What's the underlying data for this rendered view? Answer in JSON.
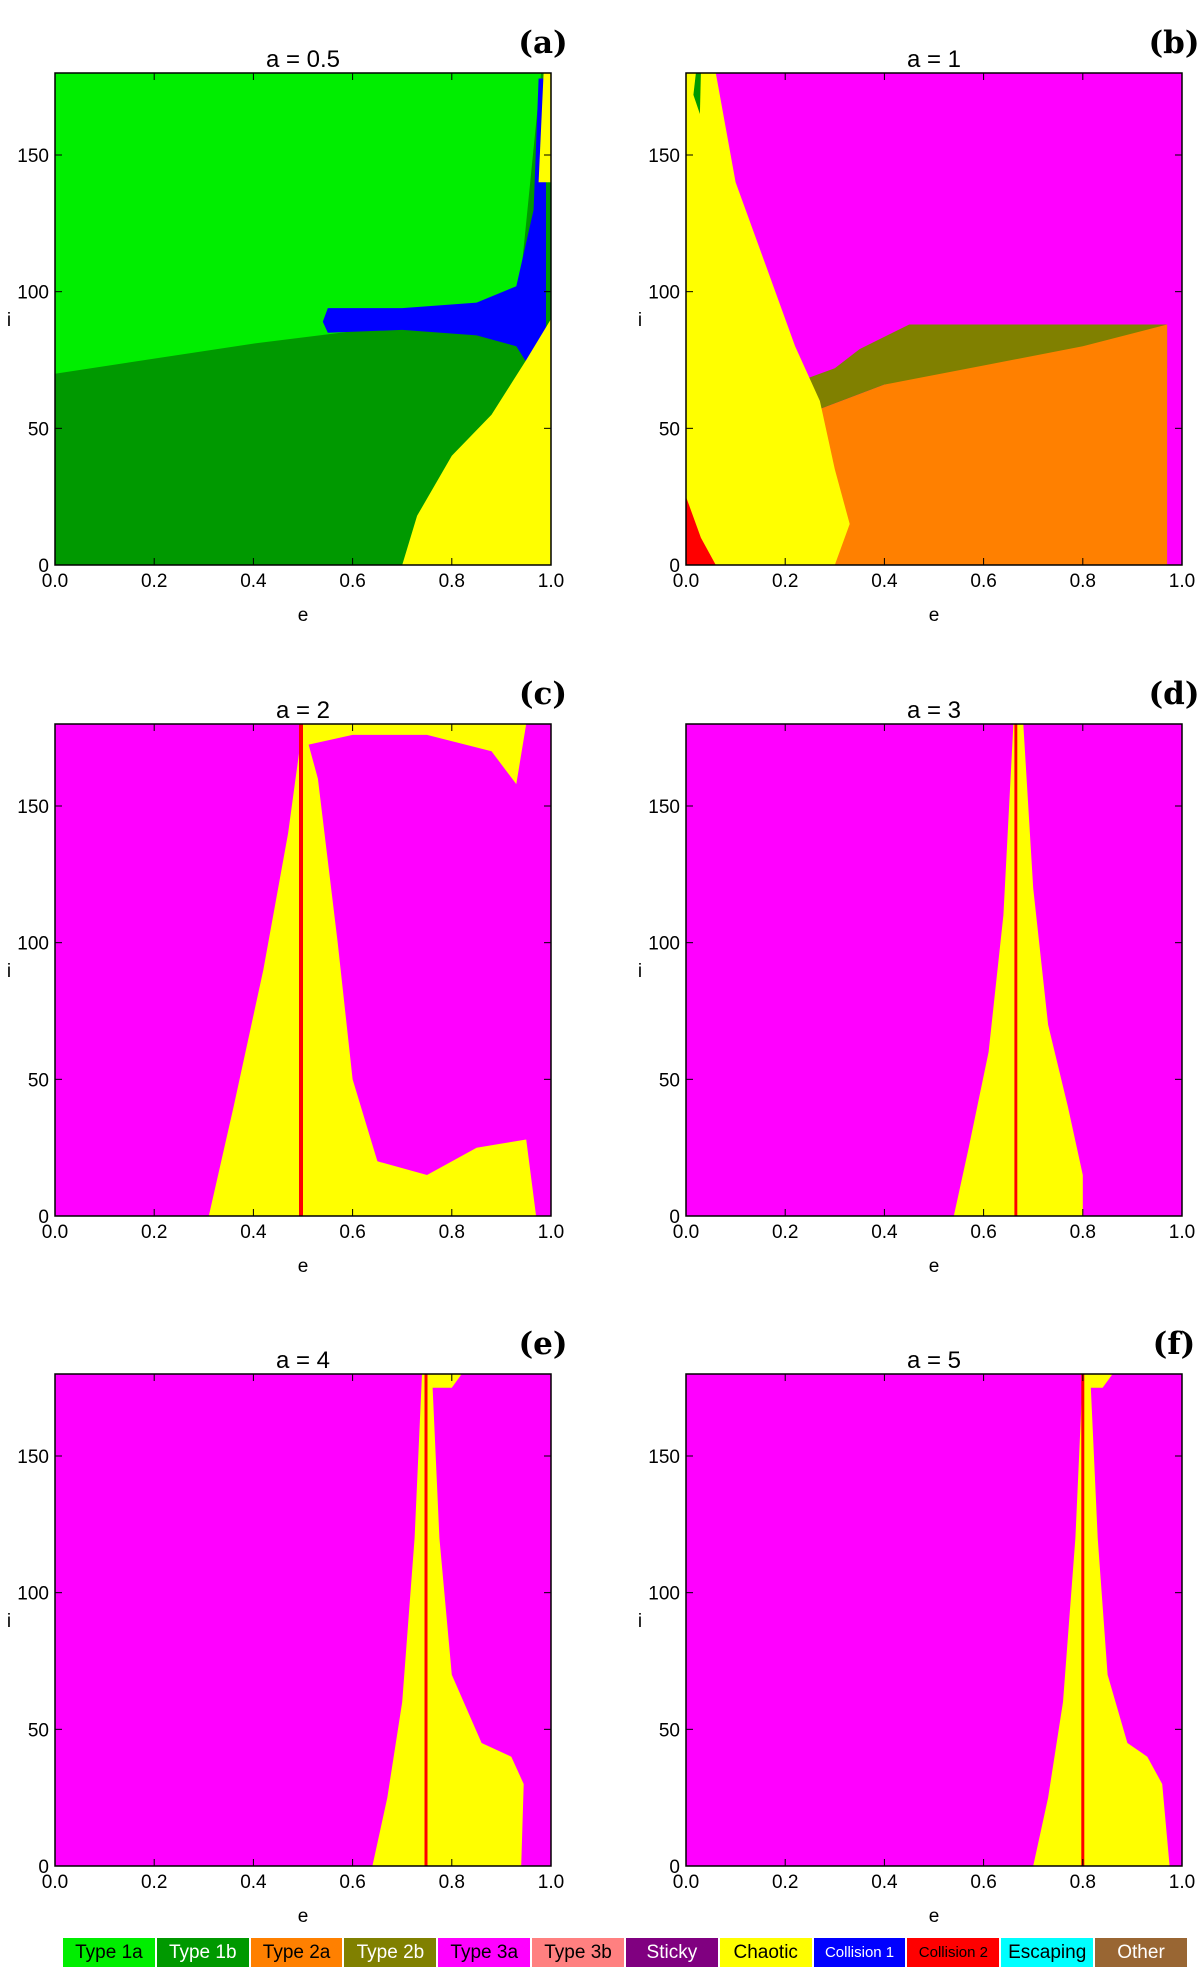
{
  "chart_data": [
    {
      "type": "heatmap",
      "panel": "(a)",
      "title": "a = 0.5",
      "xlabel": "e",
      "ylabel": "i",
      "xlim": [
        0.0,
        1.0
      ],
      "ylim": [
        0,
        180
      ],
      "xticks": [
        "0.0",
        "0.2",
        "0.4",
        "0.6",
        "0.8",
        "1.0"
      ],
      "yticks": [
        "0",
        "50",
        "100",
        "150"
      ],
      "background": "Type 1b",
      "regions": [
        {
          "class": "Type 1a",
          "polygon": [
            [
              0,
              70
            ],
            [
              0.2,
              75.5
            ],
            [
              0.4,
              81
            ],
            [
              0.6,
              85.5
            ],
            [
              0.8,
              88
            ],
            [
              0.93,
              89
            ],
            [
              0.98,
              180
            ],
            [
              0,
              180
            ]
          ]
        },
        {
          "class": "Collision 1",
          "polygon": [
            [
              0.54,
              89
            ],
            [
              0.55,
              94
            ],
            [
              0.7,
              94
            ],
            [
              0.85,
              96
            ],
            [
              0.93,
              102
            ],
            [
              0.965,
              130
            ],
            [
              0.975,
              178
            ],
            [
              0.99,
              178
            ],
            [
              0.99,
              60
            ],
            [
              0.965,
              70
            ],
            [
              0.93,
              80
            ],
            [
              0.85,
              84
            ],
            [
              0.7,
              86
            ],
            [
              0.55,
              85
            ]
          ]
        },
        {
          "class": "Chaotic",
          "polygon": [
            [
              0.7,
              0
            ],
            [
              0.73,
              18
            ],
            [
              0.8,
              40
            ],
            [
              0.88,
              55
            ],
            [
              0.95,
              75
            ],
            [
              1.0,
              90
            ],
            [
              1.0,
              0
            ]
          ]
        },
        {
          "class": "Chaotic",
          "polygon": [
            [
              0.975,
              140
            ],
            [
              0.985,
              180
            ],
            [
              1.0,
              180
            ],
            [
              1.0,
              140
            ]
          ]
        }
      ]
    },
    {
      "type": "heatmap",
      "panel": "(b)",
      "title": "a = 1",
      "xlabel": "e",
      "ylabel": "i",
      "xlim": [
        0.0,
        1.0
      ],
      "ylim": [
        0,
        180
      ],
      "xticks": [
        "0.0",
        "0.2",
        "0.4",
        "0.6",
        "0.8",
        "1.0"
      ],
      "yticks": [
        "0",
        "50",
        "100",
        "150"
      ],
      "background": "Type 3a",
      "regions": [
        {
          "class": "Type 2b",
          "polygon": [
            [
              0.24,
              55
            ],
            [
              0.24,
              68
            ],
            [
              0.3,
              72
            ],
            [
              0.35,
              79
            ],
            [
              0.45,
              88
            ],
            [
              0.97,
              88
            ],
            [
              0.97,
              72
            ],
            [
              0.6,
              68
            ],
            [
              0.4,
              66
            ]
          ]
        },
        {
          "class": "Type 2a",
          "polygon": [
            [
              0.24,
              55
            ],
            [
              0.4,
              66
            ],
            [
              0.6,
              73
            ],
            [
              0.8,
              80
            ],
            [
              0.97,
              88
            ],
            [
              0.97,
              0
            ],
            [
              0.24,
              0
            ]
          ]
        },
        {
          "class": "Chaotic",
          "polygon": [
            [
              0,
              0
            ],
            [
              0,
              180
            ],
            [
              0.06,
              180
            ],
            [
              0.1,
              140
            ],
            [
              0.16,
              110
            ],
            [
              0.22,
              80
            ],
            [
              0.27,
              60
            ],
            [
              0.3,
              35
            ],
            [
              0.33,
              15
            ],
            [
              0.3,
              0
            ]
          ]
        },
        {
          "class": "Collision 2",
          "polygon": [
            [
              0,
              0
            ],
            [
              0,
              25
            ],
            [
              0.03,
              10
            ],
            [
              0.06,
              0
            ]
          ]
        },
        {
          "class": "Type 1b",
          "polygon": [
            [
              0.015,
              172
            ],
            [
              0.02,
              180
            ],
            [
              0.03,
              180
            ],
            [
              0.028,
              165
            ]
          ]
        }
      ]
    },
    {
      "type": "heatmap",
      "panel": "(c)",
      "title": "a = 2",
      "xlabel": "e",
      "ylabel": "i",
      "xlim": [
        0.0,
        1.0
      ],
      "ylim": [
        0,
        180
      ],
      "xticks": [
        "0.0",
        "0.2",
        "0.4",
        "0.6",
        "0.8",
        "1.0"
      ],
      "yticks": [
        "0",
        "50",
        "100",
        "150"
      ],
      "background": "Type 3a",
      "regions": [
        {
          "class": "Chaotic",
          "polygon": [
            [
              0.31,
              0
            ],
            [
              0.36,
              40
            ],
            [
              0.42,
              90
            ],
            [
              0.47,
              140
            ],
            [
              0.5,
              180
            ],
            [
              0.53,
              160
            ],
            [
              0.57,
              100
            ],
            [
              0.6,
              50
            ],
            [
              0.65,
              20
            ],
            [
              0.75,
              15
            ],
            [
              0.85,
              25
            ],
            [
              0.95,
              28
            ],
            [
              0.97,
              0
            ]
          ]
        },
        {
          "class": "Chaotic",
          "polygon": [
            [
              0.5,
              180
            ],
            [
              0.5,
              172
            ],
            [
              0.6,
              176
            ],
            [
              0.75,
              176
            ],
            [
              0.88,
              170
            ],
            [
              0.93,
              158
            ],
            [
              0.95,
              180
            ]
          ]
        },
        {
          "class": "Collision 2",
          "polygon": [
            [
              0.492,
              0
            ],
            [
              0.492,
              180
            ],
            [
              0.5,
              180
            ],
            [
              0.5,
              0
            ]
          ]
        }
      ]
    },
    {
      "type": "heatmap",
      "panel": "(d)",
      "title": "a = 3",
      "xlabel": "e",
      "ylabel": "i",
      "xlim": [
        0.0,
        1.0
      ],
      "ylim": [
        0,
        180
      ],
      "xticks": [
        "0.0",
        "0.2",
        "0.4",
        "0.6",
        "0.8",
        "1.0"
      ],
      "yticks": [
        "0",
        "50",
        "100",
        "150"
      ],
      "background": "Type 3a",
      "regions": [
        {
          "class": "Chaotic",
          "polygon": [
            [
              0.54,
              0
            ],
            [
              0.57,
              25
            ],
            [
              0.61,
              60
            ],
            [
              0.64,
              110
            ],
            [
              0.66,
              180
            ],
            [
              0.68,
              180
            ],
            [
              0.7,
              120
            ],
            [
              0.73,
              70
            ],
            [
              0.77,
              40
            ],
            [
              0.8,
              15
            ],
            [
              0.8,
              0
            ]
          ]
        },
        {
          "class": "Collision 2",
          "polygon": [
            [
              0.662,
              0
            ],
            [
              0.662,
              180
            ],
            [
              0.668,
              180
            ],
            [
              0.668,
              0
            ]
          ]
        }
      ]
    },
    {
      "type": "heatmap",
      "panel": "(e)",
      "title": "a = 4",
      "xlabel": "e",
      "ylabel": "i",
      "xlim": [
        0.0,
        1.0
      ],
      "ylim": [
        0,
        180
      ],
      "xticks": [
        "0.0",
        "0.2",
        "0.4",
        "0.6",
        "0.8",
        "1.0"
      ],
      "yticks": [
        "0",
        "50",
        "100",
        "150"
      ],
      "background": "Type 3a",
      "regions": [
        {
          "class": "Chaotic",
          "polygon": [
            [
              0.64,
              0
            ],
            [
              0.67,
              25
            ],
            [
              0.7,
              60
            ],
            [
              0.725,
              120
            ],
            [
              0.74,
              180
            ],
            [
              0.76,
              180
            ],
            [
              0.775,
              120
            ],
            [
              0.8,
              70
            ],
            [
              0.86,
              45
            ],
            [
              0.92,
              40
            ],
            [
              0.945,
              30
            ],
            [
              0.94,
              0
            ]
          ]
        },
        {
          "class": "Chaotic",
          "polygon": [
            [
              0.75,
              175
            ],
            [
              0.75,
              180
            ],
            [
              0.82,
              180
            ],
            [
              0.8,
              175
            ]
          ]
        },
        {
          "class": "Collision 2",
          "polygon": [
            [
              0.745,
              0
            ],
            [
              0.745,
              180
            ],
            [
              0.751,
              180
            ],
            [
              0.751,
              0
            ]
          ]
        }
      ]
    },
    {
      "type": "heatmap",
      "panel": "(f)",
      "title": "a = 5",
      "xlabel": "e",
      "ylabel": "i",
      "xlim": [
        0.0,
        1.0
      ],
      "ylim": [
        0,
        180
      ],
      "xticks": [
        "0.0",
        "0.2",
        "0.4",
        "0.6",
        "0.8",
        "1.0"
      ],
      "yticks": [
        "0",
        "50",
        "100",
        "150"
      ],
      "background": "Type 3a",
      "regions": [
        {
          "class": "Chaotic",
          "polygon": [
            [
              0.7,
              0
            ],
            [
              0.73,
              25
            ],
            [
              0.76,
              60
            ],
            [
              0.785,
              120
            ],
            [
              0.8,
              180
            ],
            [
              0.815,
              180
            ],
            [
              0.83,
              120
            ],
            [
              0.85,
              70
            ],
            [
              0.89,
              45
            ],
            [
              0.93,
              40
            ],
            [
              0.96,
              30
            ],
            [
              0.975,
              0
            ]
          ]
        },
        {
          "class": "Chaotic",
          "polygon": [
            [
              0.8,
              175
            ],
            [
              0.8,
              180
            ],
            [
              0.86,
              180
            ],
            [
              0.84,
              175
            ]
          ]
        },
        {
          "class": "Collision 2",
          "polygon": [
            [
              0.797,
              0
            ],
            [
              0.797,
              180
            ],
            [
              0.803,
              180
            ],
            [
              0.803,
              0
            ]
          ]
        }
      ]
    }
  ],
  "legend": [
    {
      "label": "Type 1a",
      "color": "#00ee00",
      "text_color": "#000000"
    },
    {
      "label": "Type 1b",
      "color": "#009900",
      "text_color": "#ffffff"
    },
    {
      "label": "Type 2a",
      "color": "#ff8000",
      "text_color": "#000000"
    },
    {
      "label": "Type 2b",
      "color": "#808000",
      "text_color": "#ffffff"
    },
    {
      "label": "Type 3a",
      "color": "#ff00ff",
      "text_color": "#000000"
    },
    {
      "label": "Type 3b",
      "color": "#ff8080",
      "text_color": "#000000"
    },
    {
      "label": "Sticky",
      "color": "#800080",
      "text_color": "#ffffff"
    },
    {
      "label": "Chaotic",
      "color": "#ffff00",
      "text_color": "#000000"
    },
    {
      "label": "Collision 1",
      "color": "#0000ff",
      "text_color": "#ffffff"
    },
    {
      "label": "Collision 2",
      "color": "#ff0000",
      "text_color": "#000000"
    },
    {
      "label": "Escaping",
      "color": "#00ffff",
      "text_color": "#000000"
    },
    {
      "label": "Other",
      "color": "#996633",
      "text_color": "#ffffff"
    }
  ]
}
